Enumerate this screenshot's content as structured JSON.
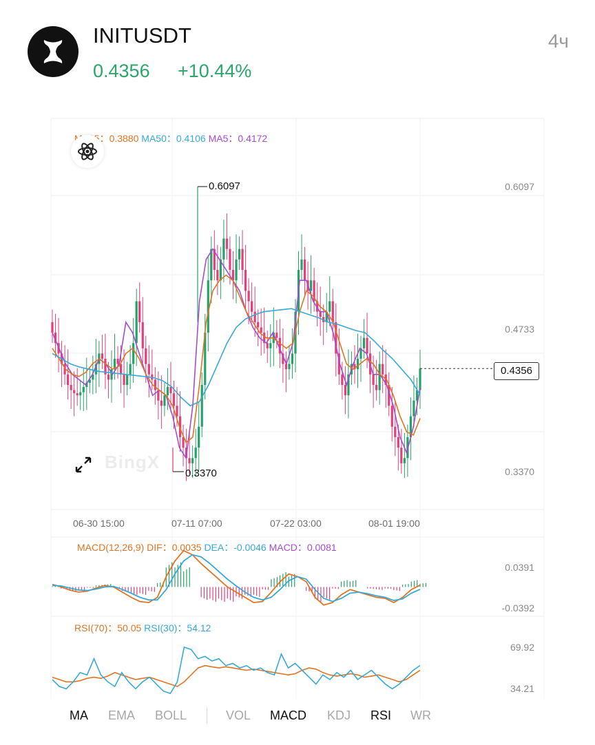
{
  "header": {
    "symbol": "INITUSDT",
    "price": "0.4356",
    "change": "+10.44%",
    "interval": "4ч",
    "logo_icon": "init-logo-icon"
  },
  "main_chart": {
    "legend": {
      "ma15_label": "MA15：",
      "ma15_value": "0.3880",
      "ma50_label": "MA50：",
      "ma50_value": "0.4106",
      "ma5_label": "MA5：",
      "ma5_value": "0.4172"
    },
    "y_labels": [
      "0.6097",
      "0.4733",
      "0.3370"
    ],
    "x_labels": [
      "06-30 15:00",
      "07-11 07:00",
      "07-22 03:00",
      "08-01 19:00"
    ],
    "high_marker": "0.6097",
    "low_marker": "0.3370",
    "current_price_tag": "0.4356",
    "watermark": "BingX"
  },
  "macd_panel": {
    "title": "MACD(12,26,9)",
    "dif_label": "DIF：",
    "dif_value": "0.0035",
    "dea_label": "DEA：",
    "dea_value": "-0.0046",
    "macd_label": "MACD：",
    "macd_value": "0.0081",
    "y_labels": [
      "0.0391",
      "-0.0392"
    ]
  },
  "rsi_panel": {
    "rsi70_label": "RSI(70)：",
    "rsi70_value": "50.05",
    "rsi30_label": "RSI(30)：",
    "rsi30_value": "54.12",
    "y_labels": [
      "69.92",
      "34.21"
    ]
  },
  "tabs": {
    "items": [
      {
        "label": "MA",
        "active": true
      },
      {
        "label": "EMA",
        "active": false
      },
      {
        "label": "BOLL",
        "active": false
      },
      {
        "label": "VOL",
        "active": false
      },
      {
        "label": "MACD",
        "active": true
      },
      {
        "label": "KDJ",
        "active": false
      },
      {
        "label": "RSI",
        "active": true
      },
      {
        "label": "WR",
        "active": false
      }
    ]
  },
  "colors": {
    "up": "#26a269",
    "down": "#e0417a",
    "ma15": "#e07422",
    "ma50": "#37a9d8",
    "ma5": "#a64bd0",
    "price_green": "#2ca66a"
  },
  "chart_data": [
    {
      "type": "candlestick",
      "title": "INITUSDT 4ч",
      "x_ticks": [
        "06-30 15:00",
        "07-11 07:00",
        "07-22 03:00",
        "08-01 19:00"
      ],
      "y_ticks": [
        0.6097,
        0.4733,
        0.337
      ],
      "ylim": [
        0.316,
        0.675
      ],
      "series": [
        {
          "name": "Close",
          "values": [
            0.47,
            0.46,
            0.45,
            0.44,
            0.43,
            0.42,
            0.415,
            0.412,
            0.41,
            0.413,
            0.418,
            0.422,
            0.425,
            0.43,
            0.44,
            0.45,
            0.445,
            0.43,
            0.425,
            0.435,
            0.445,
            0.44,
            0.43,
            0.42,
            0.43,
            0.44,
            0.46,
            0.5,
            0.48,
            0.455,
            0.44,
            0.43,
            0.425,
            0.415,
            0.405,
            0.4,
            0.41,
            0.418,
            0.412,
            0.4,
            0.39,
            0.37,
            0.36,
            0.35,
            0.345,
            0.35,
            0.36,
            0.38,
            0.42,
            0.47,
            0.52,
            0.55,
            0.53,
            0.52,
            0.54,
            0.56,
            0.55,
            0.53,
            0.52,
            0.54,
            0.55,
            0.53,
            0.51,
            0.5,
            0.49,
            0.48,
            0.475,
            0.47,
            0.46,
            0.455,
            0.46,
            0.47,
            0.465,
            0.45,
            0.44,
            0.435,
            0.44,
            0.45,
            0.49,
            0.53,
            0.54,
            0.52,
            0.51,
            0.52,
            0.5,
            0.49,
            0.485,
            0.48,
            0.49,
            0.5,
            0.48,
            0.45,
            0.43,
            0.42,
            0.41,
            0.43,
            0.44,
            0.435,
            0.445,
            0.455,
            0.465,
            0.45,
            0.43,
            0.42,
            0.415,
            0.44,
            0.43,
            0.42,
            0.4,
            0.38,
            0.37,
            0.36,
            0.345,
            0.35,
            0.37,
            0.39,
            0.405,
            0.415,
            0.4356
          ]
        },
        {
          "name": "MA5",
          "values": [
            0.47,
            0.455,
            0.44,
            0.43,
            0.425,
            0.42,
            0.43,
            0.445,
            0.44,
            0.43,
            0.44,
            0.48,
            0.47,
            0.45,
            0.43,
            0.41,
            0.415,
            0.41,
            0.39,
            0.36,
            0.35,
            0.4,
            0.5,
            0.54,
            0.55,
            0.54,
            0.53,
            0.52,
            0.51,
            0.49,
            0.475,
            0.465,
            0.46,
            0.47,
            0.455,
            0.44,
            0.46,
            0.52,
            0.52,
            0.5,
            0.49,
            0.49,
            0.47,
            0.44,
            0.42,
            0.44,
            0.455,
            0.45,
            0.43,
            0.43,
            0.42,
            0.4,
            0.37,
            0.355,
            0.38,
            0.4172
          ]
        },
        {
          "name": "MA15",
          "values": [
            0.455,
            0.445,
            0.435,
            0.43,
            0.428,
            0.432,
            0.44,
            0.445,
            0.44,
            0.435,
            0.438,
            0.45,
            0.455,
            0.445,
            0.43,
            0.42,
            0.415,
            0.41,
            0.4,
            0.38,
            0.365,
            0.37,
            0.42,
            0.48,
            0.51,
            0.52,
            0.525,
            0.52,
            0.505,
            0.49,
            0.48,
            0.47,
            0.465,
            0.465,
            0.46,
            0.455,
            0.46,
            0.49,
            0.51,
            0.505,
            0.495,
            0.49,
            0.48,
            0.46,
            0.44,
            0.435,
            0.44,
            0.445,
            0.44,
            0.43,
            0.425,
            0.41,
            0.39,
            0.375,
            0.372,
            0.388
          ]
        },
        {
          "name": "MA50",
          "values": [
            0.45,
            0.445,
            0.44,
            0.437,
            0.435,
            0.433,
            0.432,
            0.431,
            0.43,
            0.429,
            0.428,
            0.427,
            0.424,
            0.418,
            0.408,
            0.4,
            0.404,
            0.42,
            0.44,
            0.46,
            0.475,
            0.483,
            0.487,
            0.49,
            0.491,
            0.492,
            0.493,
            0.49,
            0.487,
            0.484,
            0.48,
            0.478,
            0.475,
            0.472,
            0.47,
            0.462,
            0.453,
            0.445,
            0.435,
            0.425,
            0.4106
          ]
        }
      ]
    },
    {
      "type": "macd",
      "title": "MACD(12,26,9)",
      "y_ticks": [
        0.0391,
        -0.0392
      ],
      "series": [
        {
          "name": "DIF",
          "values": [
            0.005,
            0.0,
            -0.006,
            -0.01,
            -0.008,
            -0.002,
            0.003,
            0.0,
            -0.01,
            -0.02,
            -0.028,
            -0.03,
            -0.02,
            0.02,
            0.05,
            0.07,
            0.062,
            0.045,
            0.03,
            0.015,
            0.0,
            -0.01,
            -0.02,
            -0.03,
            -0.028,
            -0.01,
            0.01,
            0.025,
            0.02,
            0.01,
            -0.02,
            -0.035,
            -0.03,
            -0.015,
            -0.005,
            -0.01,
            -0.015,
            -0.02,
            -0.022,
            -0.03,
            -0.02,
            -0.005,
            0.0035
          ]
        },
        {
          "name": "DEA",
          "values": [
            0.003,
            0.002,
            -0.002,
            -0.006,
            -0.007,
            -0.004,
            0.0,
            0.001,
            -0.005,
            -0.012,
            -0.02,
            -0.025,
            -0.025,
            -0.005,
            0.025,
            0.05,
            0.062,
            0.058,
            0.045,
            0.03,
            0.015,
            0.002,
            -0.01,
            -0.02,
            -0.025,
            -0.02,
            -0.005,
            0.012,
            0.02,
            0.015,
            -0.005,
            -0.022,
            -0.028,
            -0.022,
            -0.012,
            -0.01,
            -0.013,
            -0.017,
            -0.02,
            -0.026,
            -0.023,
            -0.012,
            -0.0046
          ]
        },
        {
          "name": "MACD",
          "values": [
            0.002,
            -0.004,
            -0.008,
            -0.008,
            -0.002,
            0.004,
            0.006,
            -0.002,
            -0.01,
            -0.016,
            -0.016,
            -0.01,
            0.01,
            0.05,
            0.05,
            0.04,
            0.0,
            -0.026,
            -0.03,
            -0.03,
            -0.03,
            -0.024,
            -0.02,
            -0.02,
            -0.006,
            0.02,
            0.03,
            0.026,
            0.0,
            -0.01,
            -0.03,
            -0.026,
            -0.004,
            0.014,
            0.014,
            0.0,
            -0.004,
            -0.006,
            -0.004,
            -0.008,
            0.006,
            0.014,
            0.0081
          ]
        }
      ]
    },
    {
      "type": "line",
      "title": "RSI",
      "y_ticks": [
        69.92,
        34.21
      ],
      "series": [
        {
          "name": "RSI(70)",
          "values": [
            44,
            42,
            40,
            40,
            41,
            43,
            44,
            43,
            45,
            48,
            46,
            44,
            42,
            43,
            44,
            42,
            40,
            38,
            36,
            40,
            46,
            52,
            54,
            53,
            52,
            53,
            52,
            51,
            50,
            51,
            50,
            49,
            48,
            47,
            46,
            47,
            50,
            52,
            51,
            48,
            46,
            45,
            46,
            47,
            46,
            44,
            45,
            46,
            44,
            42,
            40,
            42,
            46,
            50.05
          ]
        },
        {
          "name": "RSI(30)",
          "values": [
            42,
            36,
            34,
            40,
            48,
            46,
            60,
            46,
            40,
            36,
            48,
            40,
            34,
            40,
            44,
            38,
            32,
            30,
            40,
            70,
            68,
            60,
            62,
            58,
            60,
            54,
            56,
            52,
            54,
            50,
            52,
            48,
            46,
            64,
            52,
            56,
            50,
            44,
            38,
            46,
            42,
            48,
            44,
            50,
            42,
            46,
            50,
            44,
            38,
            34,
            38,
            44,
            50,
            54.12
          ]
        }
      ]
    }
  ]
}
